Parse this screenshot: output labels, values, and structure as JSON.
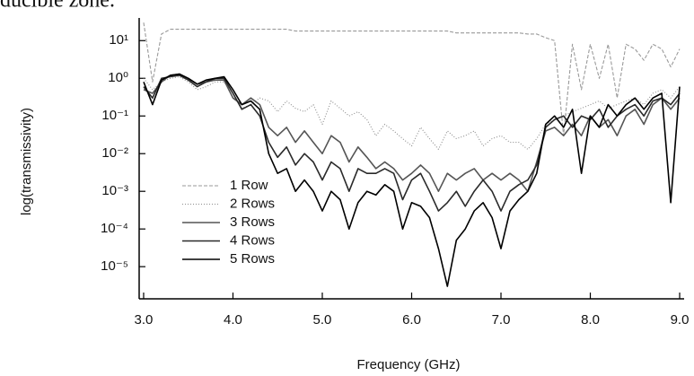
{
  "chart_data": {
    "type": "line",
    "annotation": "ducible zone.",
    "xlabel": "Frequency (GHz)",
    "ylabel": "log(transmissivity)",
    "log_y": true,
    "legend": "lower left",
    "xlim": [
      2.95,
      9.05
    ],
    "ylim": [
      1.4e-06,
      40
    ],
    "xticks": [
      {
        "value": 3,
        "label": "3.0"
      },
      {
        "value": 4,
        "label": "4.0"
      },
      {
        "value": 5,
        "label": "5.0"
      },
      {
        "value": 6,
        "label": "6.0"
      },
      {
        "value": 7,
        "label": "7.0"
      },
      {
        "value": 8,
        "label": "8.0"
      },
      {
        "value": 9,
        "label": "9.0"
      }
    ],
    "yticks": [
      {
        "value": 10,
        "label": "10¹"
      },
      {
        "value": 1,
        "label": "10⁰"
      },
      {
        "value": 0.1,
        "label": "10⁻¹"
      },
      {
        "value": 0.01,
        "label": "10⁻²"
      },
      {
        "value": 0.001,
        "label": "10⁻³"
      },
      {
        "value": 0.0001,
        "label": "10⁻⁴"
      },
      {
        "value": 1e-05,
        "label": "10⁻⁵"
      }
    ],
    "x": [
      3.0,
      3.1,
      3.2,
      3.3,
      3.4,
      3.5,
      3.6,
      3.7,
      3.8,
      3.9,
      4.0,
      4.1,
      4.2,
      4.3,
      4.4,
      4.5,
      4.6,
      4.7,
      4.8,
      4.9,
      5.0,
      5.1,
      5.2,
      5.3,
      5.4,
      5.5,
      5.6,
      5.7,
      5.8,
      5.9,
      6.0,
      6.1,
      6.2,
      6.3,
      6.4,
      6.5,
      6.6,
      6.7,
      6.8,
      6.9,
      7.0,
      7.1,
      7.2,
      7.3,
      7.4,
      7.5,
      7.6,
      7.7,
      7.8,
      7.9,
      8.0,
      8.1,
      8.2,
      8.3,
      8.4,
      8.5,
      8.6,
      8.7,
      8.8,
      8.9,
      9.0
    ],
    "series": [
      {
        "name": "1 Row",
        "color": "#9a9a9a",
        "dash": "4 2",
        "values": [
          30,
          0.8,
          15,
          20,
          20,
          20,
          20,
          20,
          20,
          20,
          20,
          20,
          20,
          20,
          20,
          20,
          20,
          18,
          18,
          18,
          18,
          18,
          18,
          18,
          18,
          18,
          18,
          18,
          18,
          18,
          18,
          18,
          18,
          18,
          18,
          16,
          16,
          16,
          16,
          16,
          16,
          16,
          16,
          15,
          15,
          12,
          10,
          0.03,
          8,
          0.5,
          8,
          1,
          8,
          0.3,
          8,
          6,
          3,
          8,
          6,
          2,
          6
        ]
      },
      {
        "name": "2 Rows",
        "color": "#8c8c8c",
        "dash": "1 2",
        "values": [
          1,
          0.5,
          0.8,
          1,
          1.1,
          0.8,
          0.5,
          0.6,
          0.8,
          0.8,
          0.4,
          0.16,
          0.2,
          0.3,
          0.25,
          0.13,
          0.25,
          0.16,
          0.13,
          0.2,
          0.06,
          0.25,
          0.16,
          0.1,
          0.13,
          0.08,
          0.03,
          0.06,
          0.04,
          0.025,
          0.016,
          0.05,
          0.025,
          0.013,
          0.04,
          0.025,
          0.03,
          0.04,
          0.016,
          0.025,
          0.03,
          0.02,
          0.02,
          0.013,
          0.025,
          0.06,
          0.08,
          0.1,
          0.13,
          0.16,
          0.2,
          0.25,
          0.16,
          0.2,
          0.25,
          0.3,
          0.2,
          0.4,
          0.5,
          0.3,
          0.6
        ]
      },
      {
        "name": "3 Rows",
        "color": "#555555",
        "dash": "none",
        "values": [
          0.5,
          0.4,
          0.8,
          1.2,
          1.3,
          1,
          0.7,
          0.8,
          0.9,
          0.9,
          0.3,
          0.2,
          0.3,
          0.2,
          0.05,
          0.03,
          0.05,
          0.02,
          0.04,
          0.02,
          0.01,
          0.03,
          0.02,
          0.006,
          0.015,
          0.008,
          0.004,
          0.006,
          0.004,
          0.002,
          0.003,
          0.005,
          0.003,
          0.001,
          0.003,
          0.002,
          0.003,
          0.004,
          0.002,
          0.003,
          0.002,
          0.003,
          0.002,
          0.001,
          0.006,
          0.04,
          0.05,
          0.03,
          0.06,
          0.03,
          0.1,
          0.05,
          0.08,
          0.03,
          0.1,
          0.15,
          0.06,
          0.2,
          0.3,
          0.15,
          0.3
        ]
      },
      {
        "name": "4 Rows",
        "color": "#2a2a2a",
        "dash": "none",
        "values": [
          0.6,
          0.3,
          1,
          1.1,
          1.2,
          0.9,
          0.6,
          0.8,
          1,
          1,
          0.4,
          0.15,
          0.2,
          0.1,
          0.02,
          0.008,
          0.015,
          0.005,
          0.01,
          0.006,
          0.002,
          0.006,
          0.004,
          0.001,
          0.004,
          0.003,
          0.003,
          0.004,
          0.003,
          0.0006,
          0.002,
          0.003,
          0.001,
          0.0003,
          0.0005,
          0.001,
          0.0004,
          0.001,
          0.002,
          0.001,
          0.0003,
          0.001,
          0.0015,
          0.002,
          0.005,
          0.05,
          0.08,
          0.1,
          0.05,
          0.1,
          0.08,
          0.15,
          0.05,
          0.1,
          0.15,
          0.2,
          0.1,
          0.25,
          0.3,
          0.2,
          0.4
        ]
      },
      {
        "name": "5 Rows",
        "color": "#000000",
        "dash": "none",
        "values": [
          0.8,
          0.2,
          0.9,
          1.2,
          1.3,
          1,
          0.7,
          0.9,
          1,
          1.1,
          0.5,
          0.2,
          0.25,
          0.15,
          0.01,
          0.003,
          0.004,
          0.001,
          0.002,
          0.001,
          0.0003,
          0.001,
          0.0006,
          0.0001,
          0.0005,
          0.001,
          0.0008,
          0.0015,
          0.001,
          0.0001,
          0.0005,
          0.0004,
          0.0002,
          3e-05,
          3e-06,
          5e-05,
          0.0001,
          0.0003,
          0.0005,
          0.0002,
          3e-05,
          0.0003,
          0.0006,
          0.001,
          0.003,
          0.06,
          0.1,
          0.05,
          0.15,
          0.003,
          0.1,
          0.05,
          0.2,
          0.1,
          0.2,
          0.3,
          0.15,
          0.3,
          0.4,
          0.0005,
          0.6
        ]
      }
    ]
  }
}
